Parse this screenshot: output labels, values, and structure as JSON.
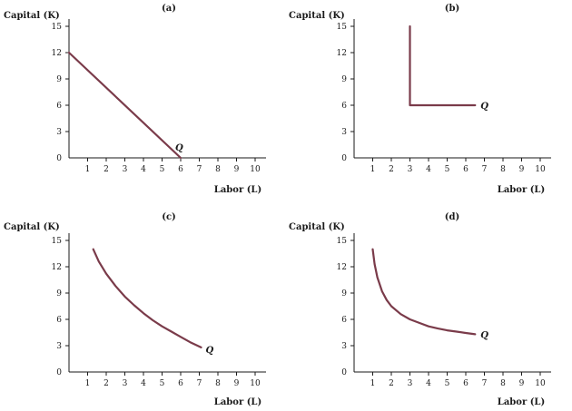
{
  "chart_data": [
    {
      "type": "line",
      "panel_label": "(a)",
      "ylabel": "Capital (K)",
      "xlabel": "Labor (L)",
      "xlim": [
        0,
        10
      ],
      "ylim": [
        0,
        15
      ],
      "x_ticks": [
        "1",
        "2",
        "3",
        "4",
        "5",
        "6",
        "7",
        "8",
        "9",
        "10"
      ],
      "y_ticks": [
        "3",
        "6",
        "9",
        "12",
        "15"
      ],
      "origin_label": "0",
      "series": [
        {
          "name": "Q",
          "x": [
            0,
            6
          ],
          "y": [
            12,
            0
          ]
        }
      ],
      "color": "#7a3b4a"
    },
    {
      "type": "line",
      "panel_label": "(b)",
      "ylabel": "Capital (K)",
      "xlabel": "Labor (L)",
      "xlim": [
        0,
        10
      ],
      "ylim": [
        0,
        15
      ],
      "x_ticks": [
        "1",
        "2",
        "3",
        "4",
        "5",
        "6",
        "7",
        "8",
        "9",
        "10"
      ],
      "y_ticks": [
        "3",
        "6",
        "9",
        "12",
        "15"
      ],
      "origin_label": "0",
      "series": [
        {
          "name": "Q",
          "x": [
            3,
            3,
            6.5
          ],
          "y": [
            15,
            6,
            6
          ]
        }
      ],
      "color": "#7a3b4a"
    },
    {
      "type": "line",
      "panel_label": "(c)",
      "ylabel": "Capital (K)",
      "xlabel": "Labor (L)",
      "xlim": [
        0,
        10
      ],
      "ylim": [
        0,
        15
      ],
      "x_ticks": [
        "1",
        "2",
        "3",
        "4",
        "5",
        "6",
        "7",
        "8",
        "9",
        "10"
      ],
      "y_ticks": [
        "3",
        "6",
        "9",
        "12",
        "15"
      ],
      "origin_label": "0",
      "series": [
        {
          "name": "Q",
          "x": [
            1.3,
            1.6,
            2,
            2.5,
            3,
            3.5,
            4,
            4.5,
            5,
            5.5,
            6,
            6.5,
            7.1
          ],
          "y": [
            14,
            12.6,
            11.2,
            9.8,
            8.6,
            7.6,
            6.7,
            5.9,
            5.2,
            4.6,
            4,
            3.4,
            2.8
          ]
        }
      ],
      "color": "#7a3b4a"
    },
    {
      "type": "line",
      "panel_label": "(d)",
      "ylabel": "Capital (K)",
      "xlabel": "Labor (L)",
      "xlim": [
        0,
        10
      ],
      "ylim": [
        0,
        15
      ],
      "x_ticks": [
        "1",
        "2",
        "3",
        "4",
        "5",
        "6",
        "7",
        "8",
        "9",
        "10"
      ],
      "y_ticks": [
        "3",
        "6",
        "9",
        "12",
        "15"
      ],
      "origin_label": "0",
      "series": [
        {
          "name": "Q",
          "x": [
            1,
            1.1,
            1.25,
            1.5,
            1.75,
            2,
            2.5,
            3,
            3.5,
            4,
            4.5,
            5,
            5.5,
            6,
            6.5
          ],
          "y": [
            14,
            12.3,
            10.8,
            9.2,
            8.2,
            7.5,
            6.6,
            6,
            5.6,
            5.2,
            4.95,
            4.75,
            4.6,
            4.45,
            4.3
          ]
        }
      ],
      "color": "#7a3b4a"
    }
  ]
}
